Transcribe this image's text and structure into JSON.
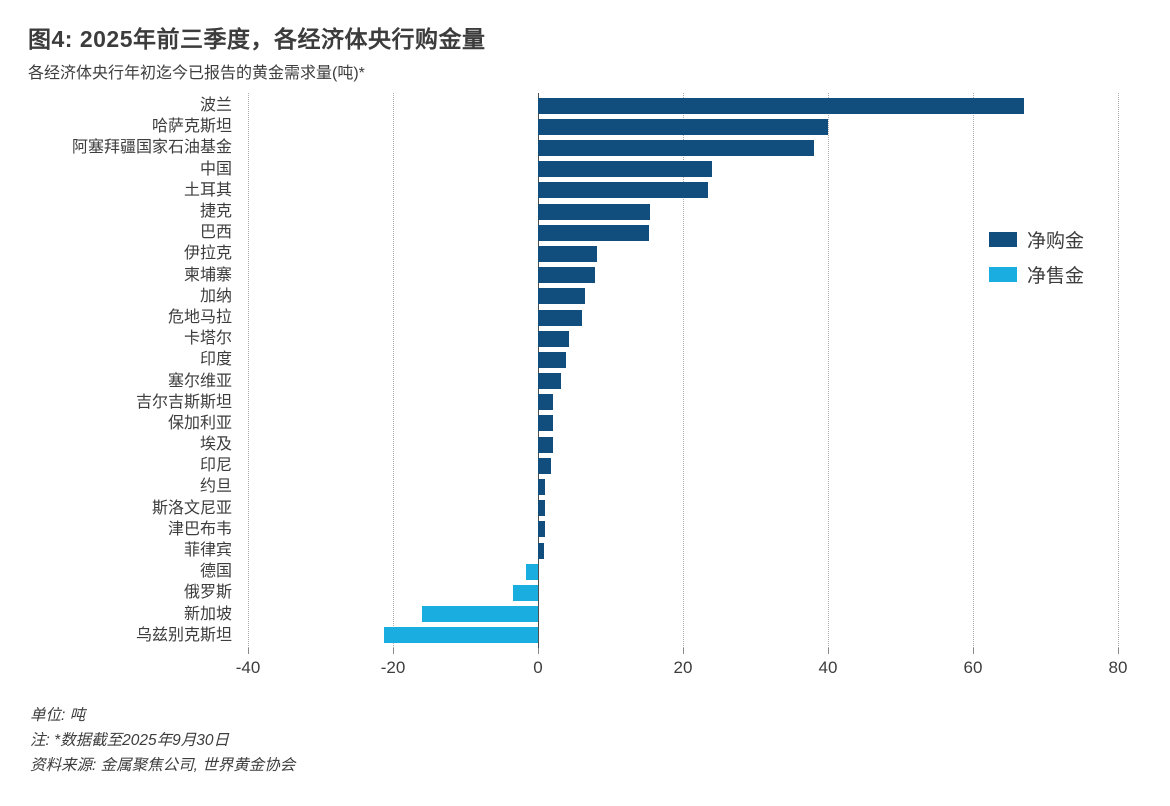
{
  "chart_data": {
    "type": "bar",
    "orientation": "horizontal",
    "title": "图4: 2025年前三季度，各经济体央行购金量",
    "subtitle": "各经济体央行年初迄今已报告的黄金需求量(吨)*",
    "unit": "吨",
    "categories": [
      "波兰",
      "哈萨克斯坦",
      "阿塞拜疆国家石油基金",
      "中国",
      "土耳其",
      "捷克",
      "巴西",
      "伊拉克",
      "柬埔寨",
      "加纳",
      "危地马拉",
      "卡塔尔",
      "印度",
      "塞尔维亚",
      "吉尔吉斯斯坦",
      "保加利亚",
      "埃及",
      "印尼",
      "约旦",
      "斯洛文尼亚",
      "津巴布韦",
      "菲律宾",
      "德国",
      "俄罗斯",
      "新加坡",
      "乌兹别克斯坦"
    ],
    "values": [
      67,
      40,
      38,
      24,
      23.5,
      15.5,
      15.3,
      8.2,
      7.9,
      6.5,
      6.1,
      4.3,
      3.9,
      3.2,
      2.1,
      2.0,
      2.0,
      1.8,
      1.0,
      1.0,
      0.9,
      0.8,
      -1.6,
      -3.4,
      -16,
      -21.3
    ],
    "xlim": [
      -40,
      80
    ],
    "x_ticks": [
      -40,
      -20,
      0,
      20,
      40,
      60,
      80
    ],
    "grid": "vertical-dotted",
    "legend_position": "right",
    "legend": [
      {
        "label": "净购金",
        "key": "net-purchase",
        "color": "#114e7d"
      },
      {
        "label": "净售金",
        "key": "net-sale",
        "color": "#1aaee0"
      }
    ],
    "colors": {
      "positive": "#114e7d",
      "negative": "#1aaee0",
      "text": "#3d3d3d",
      "gridline": "#adadad",
      "zero_axis": "#4d4d4d"
    }
  },
  "footer": {
    "unit": "单位: 吨",
    "note": "注: *数据截至2025年9月30日",
    "source": "资料来源: 金属聚焦公司, 世界黄金协会"
  }
}
